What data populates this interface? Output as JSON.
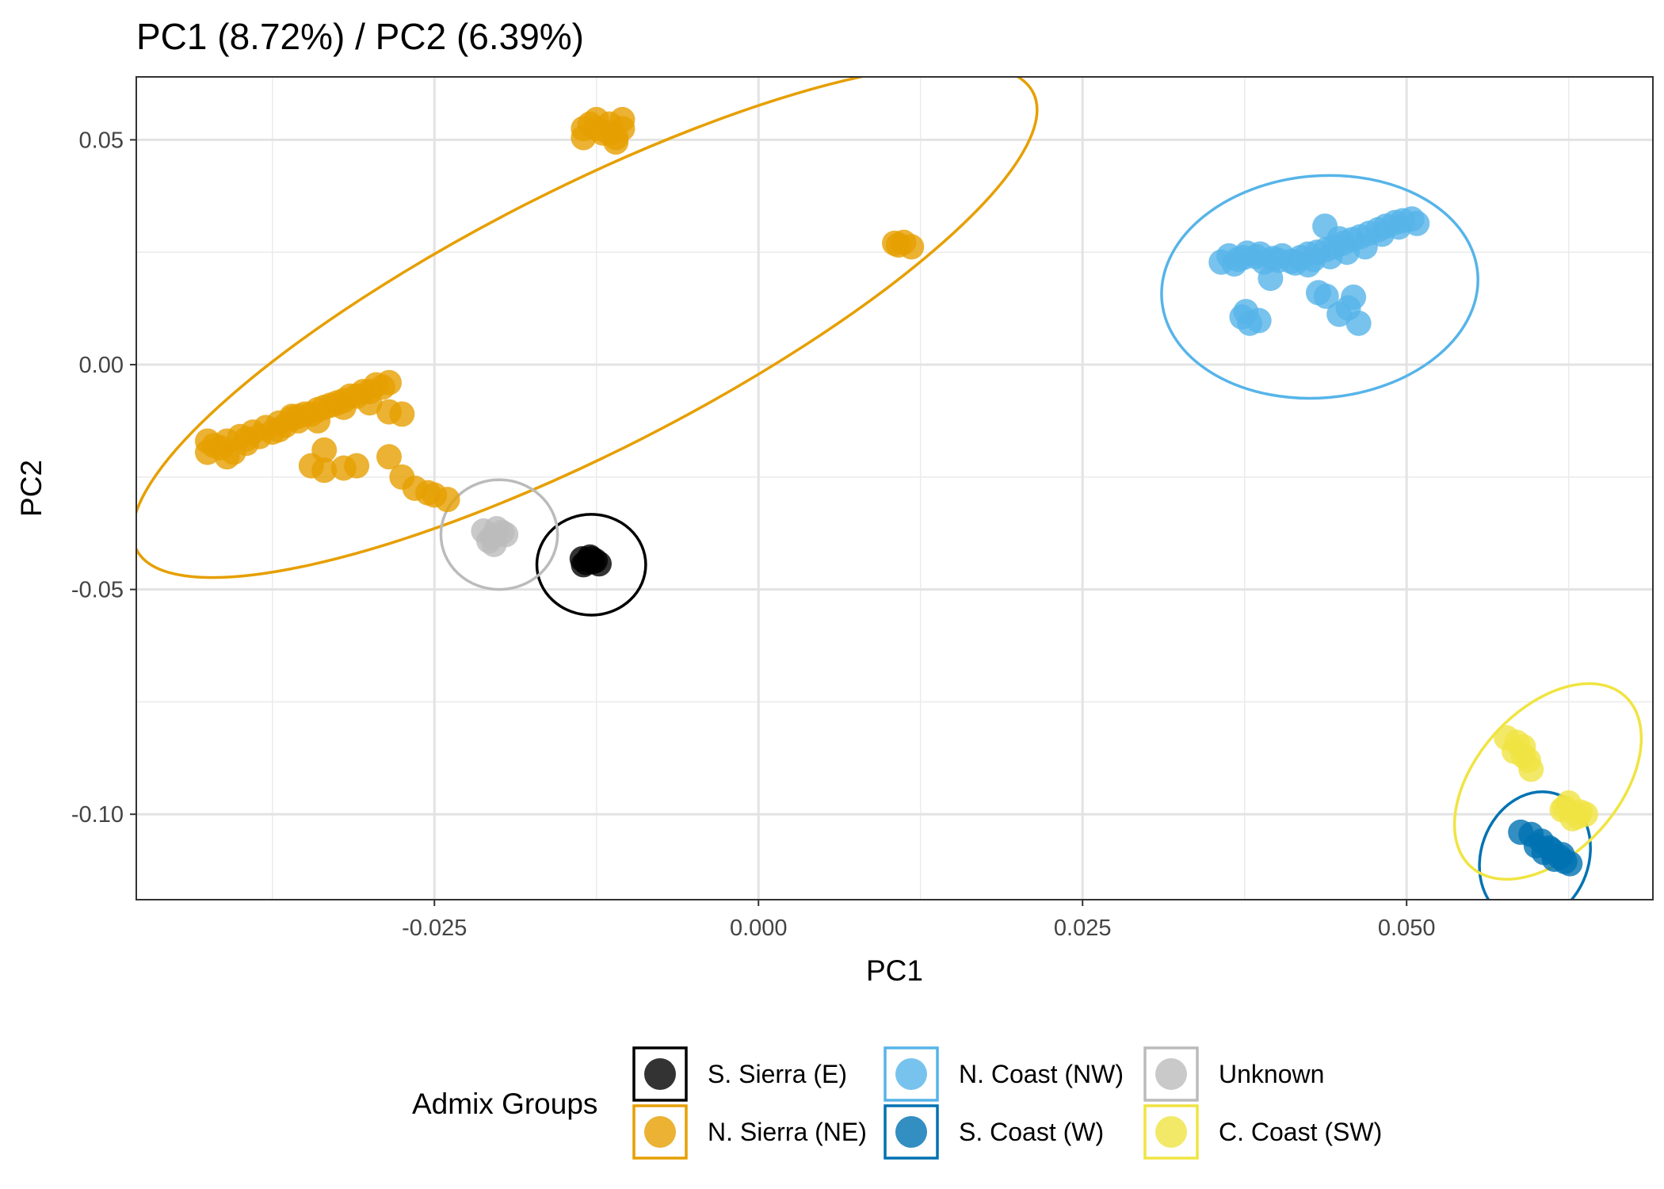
{
  "chart_data": {
    "type": "scatter",
    "title": "PC1 (8.72%) / PC2 (6.39%)",
    "xlabel": "PC1",
    "ylabel": "PC2",
    "xlim": [
      -0.048,
      0.069
    ],
    "ylim": [
      -0.119,
      0.064
    ],
    "x_ticks": [
      -0.025,
      0.0,
      0.025,
      0.05
    ],
    "x_tick_labels": [
      "-0.025",
      "0.000",
      "0.025",
      "0.050"
    ],
    "y_ticks": [
      -0.1,
      -0.05,
      0.0,
      0.05
    ],
    "y_tick_labels": [
      "-0.10",
      "-0.05",
      "0.00",
      "0.05"
    ],
    "grid": true,
    "legend": {
      "title": "Admix Groups",
      "placement": "bottom"
    },
    "series": [
      {
        "name": "S. Sierra (E)",
        "color": "#000000",
        "points": [
          [
            -0.0136,
            -0.0432
          ],
          [
            -0.0128,
            -0.0438
          ],
          [
            -0.0135,
            -0.0445
          ],
          [
            -0.0123,
            -0.0443
          ],
          [
            -0.013,
            -0.0428
          ],
          [
            -0.0126,
            -0.0436
          ],
          [
            -0.0133,
            -0.044
          ],
          [
            -0.0129,
            -0.0432
          ]
        ],
        "ellipse": {
          "cx": -0.0129,
          "cy": -0.0445,
          "rx": 0.0042,
          "ry": 0.0112,
          "angle": 0
        }
      },
      {
        "name": "N. Sierra (NE)",
        "color": "#E69F00",
        "points": [
          [
            -0.0425,
            -0.0195
          ],
          [
            -0.042,
            -0.018
          ],
          [
            -0.041,
            -0.017
          ],
          [
            -0.04,
            -0.016
          ],
          [
            -0.039,
            -0.015
          ],
          [
            -0.038,
            -0.014
          ],
          [
            -0.037,
            -0.013
          ],
          [
            -0.036,
            -0.012
          ],
          [
            -0.035,
            -0.011
          ],
          [
            -0.034,
            -0.01
          ],
          [
            -0.033,
            -0.009
          ],
          [
            -0.032,
            -0.008
          ],
          [
            -0.031,
            -0.007
          ],
          [
            -0.03,
            -0.006
          ],
          [
            -0.029,
            -0.005
          ],
          [
            -0.0285,
            -0.004
          ],
          [
            -0.0415,
            -0.0185
          ],
          [
            -0.0405,
            -0.0195
          ],
          [
            -0.0395,
            -0.0175
          ],
          [
            -0.0385,
            -0.016
          ],
          [
            -0.0375,
            -0.015
          ],
          [
            -0.0365,
            -0.0135
          ],
          [
            -0.0355,
            -0.0125
          ],
          [
            -0.0345,
            -0.011
          ],
          [
            -0.0335,
            -0.0095
          ],
          [
            -0.0325,
            -0.0085
          ],
          [
            -0.0315,
            -0.007
          ],
          [
            -0.0305,
            -0.006
          ],
          [
            -0.0295,
            -0.0045
          ],
          [
            -0.0425,
            -0.017
          ],
          [
            -0.041,
            -0.0205
          ],
          [
            -0.0395,
            -0.0165
          ],
          [
            -0.037,
            -0.0145
          ],
          [
            -0.036,
            -0.0115
          ],
          [
            -0.034,
            -0.0125
          ],
          [
            -0.032,
            -0.0095
          ],
          [
            -0.03,
            -0.0085
          ],
          [
            -0.0355,
            -0.0115
          ],
          [
            -0.0285,
            -0.0105
          ],
          [
            -0.0275,
            -0.011
          ],
          [
            -0.0345,
            -0.0225
          ],
          [
            -0.0335,
            -0.0235
          ],
          [
            -0.032,
            -0.023
          ],
          [
            -0.031,
            -0.0225
          ],
          [
            -0.0335,
            -0.019
          ],
          [
            -0.0285,
            -0.0205
          ],
          [
            -0.0275,
            -0.025
          ],
          [
            -0.0265,
            -0.0275
          ],
          [
            -0.025,
            -0.029
          ],
          [
            -0.024,
            -0.03
          ],
          [
            -0.0255,
            -0.0285
          ],
          [
            -0.0135,
            0.0505
          ],
          [
            -0.0125,
            0.0525
          ],
          [
            -0.0115,
            0.0535
          ],
          [
            -0.0105,
            0.0545
          ],
          [
            -0.013,
            0.0535
          ],
          [
            -0.012,
            0.0515
          ],
          [
            -0.011,
            0.0505
          ],
          [
            -0.0135,
            0.0525
          ],
          [
            -0.0125,
            0.0545
          ],
          [
            -0.0115,
            0.0515
          ],
          [
            -0.011,
            0.0495
          ],
          [
            -0.0105,
            0.0525
          ],
          [
            0.0105,
            0.027
          ],
          [
            0.0112,
            0.0272
          ],
          [
            0.0118,
            0.0262
          ],
          [
            0.0108,
            0.0266
          ]
        ],
        "ellipse": {
          "cx": -0.0134,
          "cy": 0.0097,
          "rx": 0.0359,
          "ry": 0.0407,
          "angle": 0
        }
      },
      {
        "name": "N. Coast (NW)",
        "color": "#56B4E9",
        "points": [
          [
            0.0357,
            0.0228
          ],
          [
            0.0363,
            0.0242
          ],
          [
            0.037,
            0.0234
          ],
          [
            0.0377,
            0.0248
          ],
          [
            0.0384,
            0.024
          ],
          [
            0.039,
            0.0228
          ],
          [
            0.0397,
            0.0236
          ],
          [
            0.0404,
            0.0242
          ],
          [
            0.0411,
            0.023
          ],
          [
            0.0418,
            0.0238
          ],
          [
            0.0424,
            0.0246
          ],
          [
            0.0431,
            0.025
          ],
          [
            0.0438,
            0.0256
          ],
          [
            0.0444,
            0.0262
          ],
          [
            0.0451,
            0.027
          ],
          [
            0.0458,
            0.0278
          ],
          [
            0.0464,
            0.0284
          ],
          [
            0.0471,
            0.0292
          ],
          [
            0.0478,
            0.03
          ],
          [
            0.0484,
            0.0308
          ],
          [
            0.0491,
            0.0316
          ],
          [
            0.0497,
            0.032
          ],
          [
            0.0504,
            0.0324
          ],
          [
            0.0508,
            0.0314
          ],
          [
            0.0367,
            0.0224
          ],
          [
            0.0374,
            0.0238
          ],
          [
            0.0387,
            0.0246
          ],
          [
            0.0401,
            0.0232
          ],
          [
            0.0414,
            0.0226
          ],
          [
            0.0428,
            0.0234
          ],
          [
            0.0441,
            0.024
          ],
          [
            0.0454,
            0.025
          ],
          [
            0.0468,
            0.0262
          ],
          [
            0.0481,
            0.029
          ],
          [
            0.0494,
            0.0306
          ],
          [
            0.0437,
            0.0308
          ],
          [
            0.0448,
            0.028
          ],
          [
            0.0424,
            0.0222
          ],
          [
            0.0373,
            0.0106
          ],
          [
            0.0379,
            0.0092
          ],
          [
            0.0386,
            0.0098
          ],
          [
            0.0376,
            0.0118
          ],
          [
            0.0395,
            0.0192
          ],
          [
            0.0432,
            0.016
          ],
          [
            0.0438,
            0.0152
          ],
          [
            0.0448,
            0.0112
          ],
          [
            0.0459,
            0.015
          ],
          [
            0.0463,
            0.0092
          ],
          [
            0.0455,
            0.0126
          ]
        ],
        "ellipse": {
          "cx": 0.0433,
          "cy": 0.0173,
          "rx": 0.0121,
          "ry": 0.0257,
          "angle": 0
        }
      },
      {
        "name": "S. Coast (W)",
        "color": "#0072B2",
        "points": [
          [
            0.0588,
            -0.104
          ],
          [
            0.0596,
            -0.1045
          ],
          [
            0.0604,
            -0.106
          ],
          [
            0.0612,
            -0.108
          ],
          [
            0.0618,
            -0.1095
          ],
          [
            0.0622,
            -0.1105
          ],
          [
            0.0614,
            -0.11
          ],
          [
            0.0606,
            -0.1085
          ],
          [
            0.06,
            -0.107
          ],
          [
            0.062,
            -0.109
          ],
          [
            0.061,
            -0.1075
          ],
          [
            0.0626,
            -0.111
          ]
        ],
        "ellipse": {
          "cx": 0.0599,
          "cy": -0.1095,
          "rx": 0.0042,
          "ry": 0.0155,
          "angle": 0
        }
      },
      {
        "name": "Unknown",
        "color": "#BBBBBB",
        "points": [
          [
            -0.0212,
            -0.037
          ],
          [
            -0.0205,
            -0.0383
          ],
          [
            -0.0198,
            -0.0373
          ],
          [
            -0.0208,
            -0.0392
          ],
          [
            -0.0202,
            -0.0365
          ],
          [
            -0.0195,
            -0.0378
          ],
          [
            -0.0204,
            -0.04
          ]
        ],
        "ellipse": {
          "cx": -0.02,
          "cy": -0.0378,
          "rx": 0.0045,
          "ry": 0.0122,
          "angle": 0
        }
      },
      {
        "name": "C. Coast (SW)",
        "color": "#F0E442",
        "points": [
          [
            0.0577,
            -0.083
          ],
          [
            0.0583,
            -0.086
          ],
          [
            0.059,
            -0.085
          ],
          [
            0.0594,
            -0.088
          ],
          [
            0.0596,
            -0.09
          ],
          [
            0.059,
            -0.087
          ],
          [
            0.0585,
            -0.084
          ],
          [
            0.0622,
            -0.0985
          ],
          [
            0.0628,
            -0.101
          ],
          [
            0.0634,
            -0.0995
          ],
          [
            0.0625,
            -0.0975
          ],
          [
            0.0632,
            -0.1005
          ],
          [
            0.062,
            -0.099
          ],
          [
            0.0638,
            -0.1
          ]
        ],
        "ellipse": {
          "cx": 0.0609,
          "cy": -0.0927,
          "rx": 0.0068,
          "ry": 0.0238,
          "angle": 0
        }
      }
    ]
  }
}
